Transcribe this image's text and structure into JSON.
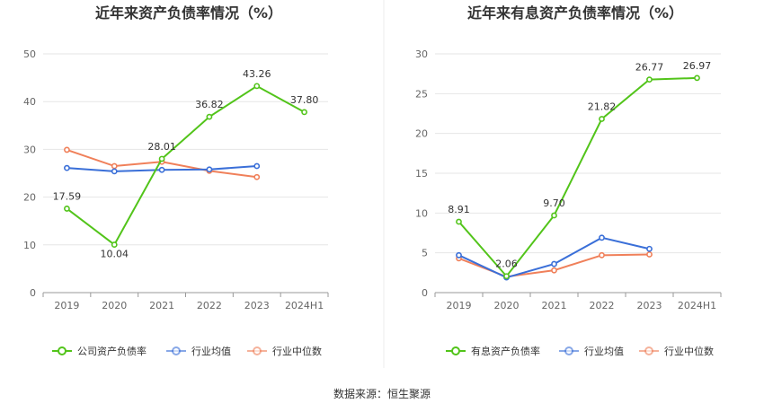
{
  "source_label": "数据来源：恒生聚源",
  "chart_data": [
    {
      "type": "line",
      "title": "近年来资产负债率情况（%）",
      "categories": [
        "2019",
        "2020",
        "2021",
        "2022",
        "2023",
        "2024H1"
      ],
      "ylim": [
        0,
        50
      ],
      "yticks": [
        0,
        10,
        20,
        30,
        40,
        50
      ],
      "grid": true,
      "legend_position": "bottom",
      "series": [
        {
          "name": "公司资产负债率",
          "color": "#52c41a",
          "values": [
            17.59,
            10.04,
            28.01,
            36.82,
            43.26,
            37.8
          ],
          "labels": [
            "17.59",
            "10.04",
            "28.01",
            "36.82",
            "43.26",
            "37.80"
          ]
        },
        {
          "name": "行业均值",
          "color": "#3a6fd8",
          "values": [
            26.1,
            25.4,
            25.7,
            25.8,
            26.5,
            null
          ]
        },
        {
          "name": "行业中位数",
          "color": "#f0805a",
          "values": [
            29.9,
            26.5,
            27.4,
            25.5,
            24.2,
            null
          ]
        }
      ]
    },
    {
      "type": "line",
      "title": "近年来有息资产负债率情况（%）",
      "categories": [
        "2019",
        "2020",
        "2021",
        "2022",
        "2023",
        "2024H1"
      ],
      "ylim": [
        0,
        30
      ],
      "yticks": [
        0,
        5,
        10,
        15,
        20,
        25,
        30
      ],
      "grid": true,
      "legend_position": "bottom",
      "series": [
        {
          "name": "有息资产负债率",
          "color": "#52c41a",
          "values": [
            8.91,
            2.06,
            9.7,
            21.82,
            26.77,
            26.97
          ],
          "labels": [
            "8.91",
            "2.06",
            "9.70",
            "21.82",
            "26.77",
            "26.97"
          ]
        },
        {
          "name": "行业均值",
          "color": "#3a6fd8",
          "values": [
            4.7,
            1.9,
            3.6,
            6.9,
            5.5,
            null
          ]
        },
        {
          "name": "行业中位数",
          "color": "#f0805a",
          "values": [
            4.3,
            2.0,
            2.8,
            4.7,
            4.8,
            null
          ]
        }
      ]
    }
  ]
}
